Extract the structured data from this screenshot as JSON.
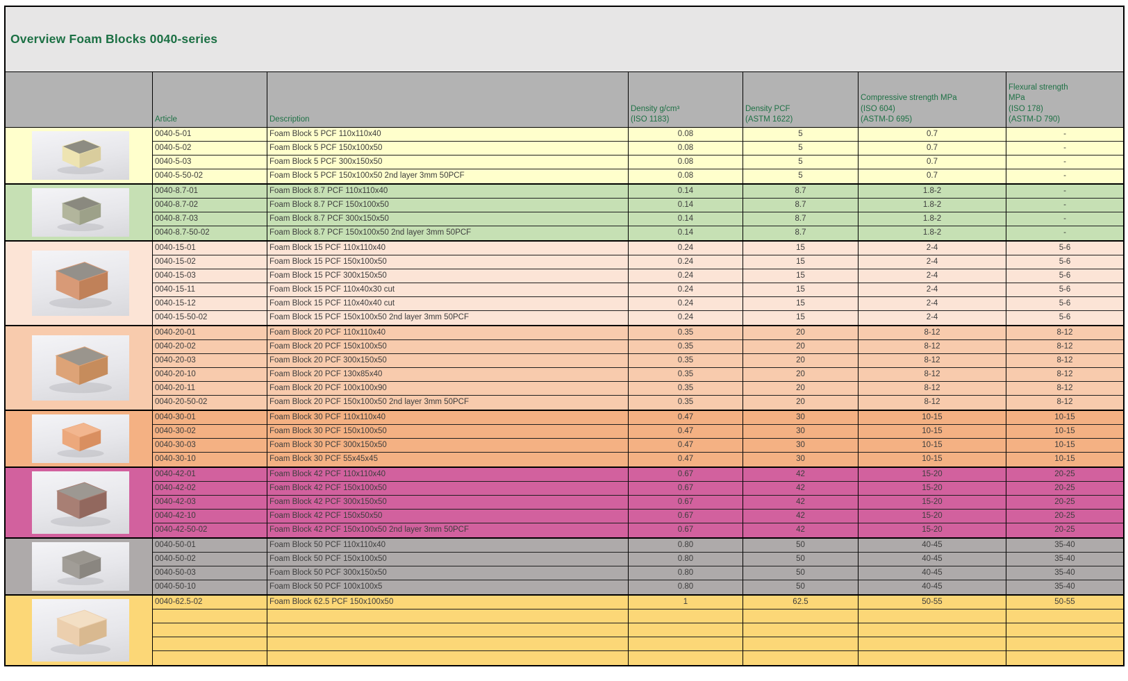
{
  "title": "Overview Foam Blocks 0040-series",
  "columns": {
    "image": "",
    "article": "Article",
    "description": "Description",
    "density_g": [
      "Density g/cm³",
      "(ISO 1183)"
    ],
    "density_pcf": [
      "Density PCF",
      "(ASTM 1622)"
    ],
    "compressive": [
      "Compressive strength MPa",
      "(ISO 604)",
      "(ASTM-D 695)"
    ],
    "flexural": [
      "Flexural strength",
      "MPa",
      "(ISO 178)",
      "(ASTM-D 790)"
    ]
  },
  "groups": [
    {
      "pcf": "5",
      "row_bg": "#ffffcc",
      "block": {
        "top": "#8d8c82",
        "front": "#eee4b2",
        "side": "#d9cd9d"
      },
      "rows": [
        [
          "0040-5-01",
          "Foam Block 5 PCF 110x110x40",
          "0.08",
          "5",
          "0.7",
          "-"
        ],
        [
          "0040-5-02",
          "Foam Block 5 PCF 150x100x50",
          "0.08",
          "5",
          "0.7",
          "-"
        ],
        [
          "0040-5-03",
          "Foam Block 5 PCF 300x150x50",
          "0.08",
          "5",
          "0.7",
          "-"
        ],
        [
          "0040-5-50-02",
          "Foam Block 5 PCF 150x100x50 2nd layer 3mm 50PCF",
          "0.08",
          "5",
          "0.7",
          "-"
        ]
      ]
    },
    {
      "pcf": "8.7",
      "row_bg": "#c6e0b4",
      "block": {
        "top": "#8a897f",
        "front": "#b2b59c",
        "side": "#9da189"
      },
      "rows": [
        [
          "0040-8.7-01",
          "Foam Block 8.7 PCF 110x110x40",
          "0.14",
          "8.7",
          "1.8-2",
          "-"
        ],
        [
          "0040-8.7-02",
          "Foam Block 8.7 PCF 150x100x50",
          "0.14",
          "8.7",
          "1.8-2",
          "-"
        ],
        [
          "0040-8.7-03",
          "Foam Block 8.7 PCF 300x150x50",
          "0.14",
          "8.7",
          "1.8-2",
          "-"
        ],
        [
          "0040-8.7-50-02",
          "Foam Block 8.7 PCF 150x100x50 2nd layer 3mm 50PCF",
          "0.14",
          "8.7",
          "1.8-2",
          "-"
        ]
      ]
    },
    {
      "pcf": "15",
      "row_bg": "#fce4d6",
      "block": {
        "top": "#94908a",
        "front": "#d89a77",
        "side": "#c08159"
      },
      "rows": [
        [
          "0040-15-01",
          "Foam Block 15 PCF 110x110x40",
          "0.24",
          "15",
          "2-4",
          "5-6"
        ],
        [
          "0040-15-02",
          "Foam Block 15 PCF 150x100x50",
          "0.24",
          "15",
          "2-4",
          "5-6"
        ],
        [
          "0040-15-03",
          "Foam Block 15 PCF 300x150x50",
          "0.24",
          "15",
          "2-4",
          "5-6"
        ],
        [
          "0040-15-11",
          "Foam Block 15 PCF 110x40x30 cut",
          "0.24",
          "15",
          "2-4",
          "5-6"
        ],
        [
          "0040-15-12",
          "Foam Block 15 PCF 110x40x40 cut",
          "0.24",
          "15",
          "2-4",
          "5-6"
        ],
        [
          "0040-15-50-02",
          "Foam Block 15 PCF 150x100x50 2nd layer 3mm 50PCF",
          "0.24",
          "15",
          "2-4",
          "5-6"
        ]
      ]
    },
    {
      "pcf": "20",
      "row_bg": "#f8cbad",
      "block": {
        "top": "#9a958d",
        "front": "#dda377",
        "side": "#c68c5c"
      },
      "rows": [
        [
          "0040-20-01",
          "Foam Block 20 PCF 110x110x40",
          "0.35",
          "20",
          "8-12",
          "8-12"
        ],
        [
          "0040-20-02",
          "Foam Block 20 PCF 150x100x50",
          "0.35",
          "20",
          "8-12",
          "8-12"
        ],
        [
          "0040-20-03",
          "Foam Block 20 PCF 300x150x50",
          "0.35",
          "20",
          "8-12",
          "8-12"
        ],
        [
          "0040-20-10",
          "Foam Block 20 PCF 130x85x40",
          "0.35",
          "20",
          "8-12",
          "8-12"
        ],
        [
          "0040-20-11",
          "Foam Block 20 PCF 100x100x90",
          "0.35",
          "20",
          "8-12",
          "8-12"
        ],
        [
          "0040-20-50-02",
          "Foam Block 20 PCF 150x100x50 2nd layer 3mm 50PCF",
          "0.35",
          "20",
          "8-12",
          "8-12"
        ]
      ]
    },
    {
      "pcf": "30",
      "row_bg": "#f4b183",
      "block": {
        "top": "#f2b68f",
        "front": "#eca87c",
        "side": "#d98f60"
      },
      "rows": [
        [
          "0040-30-01",
          "Foam Block 30 PCF 110x110x40",
          "0.47",
          "30",
          "10-15",
          "10-15"
        ],
        [
          "0040-30-02",
          "Foam Block 30 PCF 150x100x50",
          "0.47",
          "30",
          "10-15",
          "10-15"
        ],
        [
          "0040-30-03",
          "Foam Block 30 PCF 300x150x50",
          "0.47",
          "30",
          "10-15",
          "10-15"
        ],
        [
          "0040-30-10",
          "Foam Block 30 PCF 55x45x45",
          "0.47",
          "30",
          "10-15",
          "10-15"
        ]
      ]
    },
    {
      "pcf": "42",
      "row_bg": "#d2619e",
      "block": {
        "top": "#9d9892",
        "front": "#a87f74",
        "side": "#92685e"
      },
      "rows": [
        [
          "0040-42-01",
          "Foam Block 42 PCF 110x110x40",
          "0.67",
          "42",
          "15-20",
          "20-25"
        ],
        [
          "0040-42-02",
          "Foam Block 42 PCF 150x100x50",
          "0.67",
          "42",
          "15-20",
          "20-25"
        ],
        [
          "0040-42-03",
          "Foam Block 42 PCF 300x150x50",
          "0.67",
          "42",
          "15-20",
          "20-25"
        ],
        [
          "0040-42-10",
          "Foam Block 42 PCF 150x50x50",
          "0.67",
          "42",
          "15-20",
          "20-25"
        ],
        [
          "0040-42-50-02",
          "Foam Block 42 PCF 150x100x50 2nd layer 3mm 50PCF",
          "0.67",
          "42",
          "15-20",
          "20-25"
        ]
      ]
    },
    {
      "pcf": "50",
      "row_bg": "#aeaaaa",
      "block": {
        "top": "#9a968f",
        "front": "#a19d97",
        "side": "#8a8680"
      },
      "rows": [
        [
          "0040-50-01",
          "Foam Block 50 PCF 110x110x40",
          "0.80",
          "50",
          "40-45",
          "35-40"
        ],
        [
          "0040-50-02",
          "Foam Block 50 PCF 150x100x50",
          "0.80",
          "50",
          "40-45",
          "35-40"
        ],
        [
          "0040-50-03",
          "Foam Block 50 PCF 300x150x50",
          "0.80",
          "50",
          "40-45",
          "35-40"
        ],
        [
          "0040-50-10",
          "Foam Block 50 PCF 100x100x5",
          "0.80",
          "50",
          "40-45",
          "35-40"
        ]
      ]
    },
    {
      "pcf": "62.5",
      "row_bg": "#fcd777",
      "block": {
        "top": "#f3dfc4",
        "front": "#eccfae",
        "side": "#d9b990"
      },
      "rows": [
        [
          "0040-62.5-02",
          "Foam Block 62.5 PCF 150x100x50",
          "1",
          "62.5",
          "50-55",
          "50-55"
        ],
        [
          "",
          "",
          "",
          "",
          "",
          ""
        ],
        [
          "",
          "",
          "",
          "",
          "",
          ""
        ],
        [
          "",
          "",
          "",
          "",
          "",
          ""
        ],
        [
          "",
          "",
          "",
          "",
          "",
          ""
        ]
      ]
    }
  ]
}
